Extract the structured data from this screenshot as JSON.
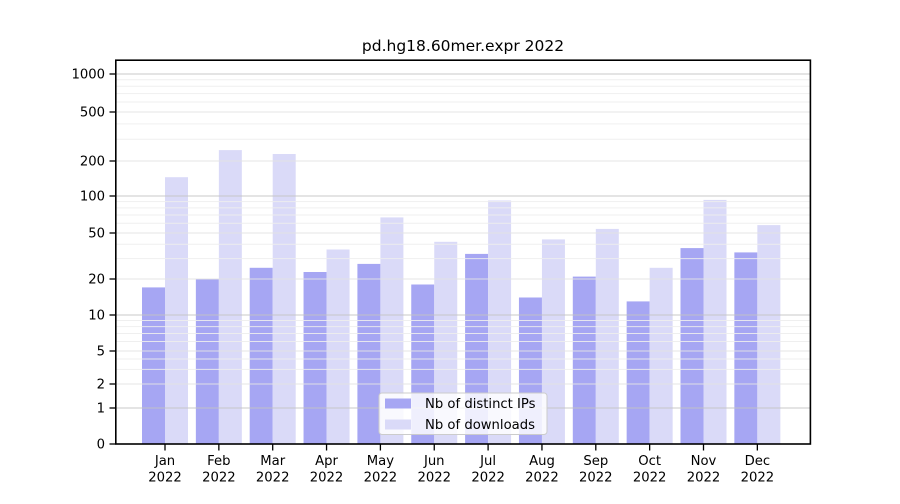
{
  "title": "pd.hg18.60mer.expr 2022",
  "legend": {
    "items": [
      {
        "label": "Nb of distinct IPs",
        "color": "#a6a6f3"
      },
      {
        "label": "Nb of downloads",
        "color": "#dadaf8"
      }
    ]
  },
  "chart_data": {
    "type": "bar",
    "title": "pd.hg18.60mer.expr 2022",
    "categories": [
      "Jan 2022",
      "Feb 2022",
      "Mar 2022",
      "Apr 2022",
      "May 2022",
      "Jun 2022",
      "Jul 2022",
      "Aug 2022",
      "Sep 2022",
      "Oct 2022",
      "Nov 2022",
      "Dec 2022"
    ],
    "series": [
      {
        "name": "Nb of distinct IPs",
        "color": "#a6a6f3",
        "values": [
          17,
          20,
          25,
          23,
          27,
          18,
          33,
          14,
          21,
          13,
          37,
          34
        ]
      },
      {
        "name": "Nb of downloads",
        "color": "#dadaf8",
        "values": [
          145,
          245,
          228,
          36,
          67,
          42,
          92,
          44,
          54,
          25,
          93,
          58
        ]
      }
    ],
    "y_scale": "log",
    "y_ticks": [
      0,
      1,
      2,
      5,
      10,
      20,
      50,
      100,
      200,
      500,
      1000
    ],
    "ylim": [
      0,
      1000
    ],
    "xlabel": "",
    "ylabel": "",
    "grid": true,
    "legend_position": "inside-bottom-center"
  }
}
